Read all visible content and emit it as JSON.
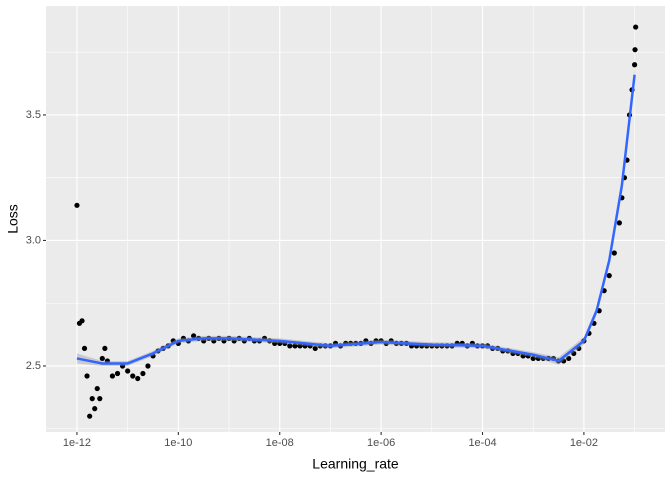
{
  "chart_data": {
    "type": "scatter",
    "x_label": "Learning_rate",
    "y_label": "Loss",
    "xlog": true,
    "grid": true,
    "color": "#000000",
    "xlim": [
      2.45e-13,
      0.398
    ],
    "ylim": [
      2.237,
      3.934
    ],
    "xticks": [
      {
        "value": 1e-12,
        "label": "1e-12"
      },
      {
        "value": 1e-10,
        "label": "1e-10"
      },
      {
        "value": 1e-08,
        "label": "1e-08"
      },
      {
        "value": 1e-06,
        "label": "1e-06"
      },
      {
        "value": 0.0001,
        "label": "1e-04"
      },
      {
        "value": 0.01,
        "label": "1e-02"
      }
    ],
    "yticks": [
      2.5,
      {
        "value": 3,
        "label": "3.0"
      },
      3.5
    ],
    "x": [
      1e-12,
      1.12e-12,
      1.26e-12,
      1.41e-12,
      1.58e-12,
      1.78e-12,
      2e-12,
      2.24e-12,
      2.51e-12,
      2.82e-12,
      3.16e-12,
      3.55e-12,
      3.98e-12,
      5.01e-12,
      6.31e-12,
      7.94e-12,
      1e-11,
      1.26e-11,
      1.58e-11,
      2e-11,
      2.51e-11,
      3.16e-11,
      3.98e-11,
      5.01e-11,
      6.31e-11,
      7.94e-11,
      1e-10,
      1.26e-10,
      1.58e-10,
      2e-10,
      2.51e-10,
      3.16e-10,
      3.98e-10,
      5.01e-10,
      6.31e-10,
      7.94e-10,
      1e-09,
      1.26e-09,
      1.58e-09,
      2e-09,
      2.51e-09,
      3.16e-09,
      3.98e-09,
      5.01e-09,
      6.31e-09,
      7.94e-09,
      1e-08,
      1.26e-08,
      1.58e-08,
      2e-08,
      2.51e-08,
      3.16e-08,
      3.98e-08,
      5.01e-08,
      6.31e-08,
      7.94e-08,
      1e-07,
      1.26e-07,
      1.58e-07,
      2e-07,
      2.51e-07,
      3.16e-07,
      3.98e-07,
      5.01e-07,
      6.31e-07,
      7.94e-07,
      1e-06,
      1.26e-06,
      1.58e-06,
      2e-06,
      2.51e-06,
      3.16e-06,
      3.98e-06,
      5.01e-06,
      6.31e-06,
      7.94e-06,
      1e-05,
      1.26e-05,
      1.58e-05,
      2e-05,
      2.51e-05,
      3.16e-05,
      3.98e-05,
      5.01e-05,
      6.31e-05,
      7.94e-05,
      0.0001,
      0.000126,
      0.000158,
      0.0002,
      0.000251,
      0.000316,
      0.000398,
      0.000501,
      0.000631,
      0.000794,
      0.001,
      0.00126,
      0.00158,
      0.002,
      0.00251,
      0.00316,
      0.00398,
      0.00501,
      0.00631,
      0.00794,
      0.01,
      0.0126,
      0.0158,
      0.02,
      0.0251,
      0.0316,
      0.0398,
      0.0501,
      0.0562,
      0.0631,
      0.0708,
      0.0794,
      0.0891,
      0.1,
      0.102,
      0.105
    ],
    "values": [
      3.14,
      2.67,
      2.68,
      2.57,
      2.46,
      2.3,
      2.37,
      2.33,
      2.41,
      2.37,
      2.53,
      2.57,
      2.52,
      2.46,
      2.47,
      2.5,
      2.48,
      2.46,
      2.45,
      2.47,
      2.5,
      2.54,
      2.56,
      2.57,
      2.58,
      2.6,
      2.59,
      2.61,
      2.6,
      2.62,
      2.61,
      2.6,
      2.61,
      2.6,
      2.61,
      2.6,
      2.61,
      2.6,
      2.61,
      2.6,
      2.61,
      2.6,
      2.6,
      2.61,
      2.6,
      2.59,
      2.59,
      2.59,
      2.58,
      2.58,
      2.58,
      2.58,
      2.58,
      2.57,
      2.58,
      2.58,
      2.58,
      2.59,
      2.58,
      2.59,
      2.59,
      2.59,
      2.59,
      2.6,
      2.59,
      2.6,
      2.6,
      2.59,
      2.6,
      2.59,
      2.59,
      2.59,
      2.58,
      2.58,
      2.58,
      2.58,
      2.58,
      2.58,
      2.58,
      2.58,
      2.58,
      2.59,
      2.59,
      2.58,
      2.59,
      2.58,
      2.58,
      2.58,
      2.57,
      2.57,
      2.56,
      2.56,
      2.55,
      2.55,
      2.54,
      2.54,
      2.53,
      2.53,
      2.53,
      2.53,
      2.53,
      2.52,
      2.52,
      2.53,
      2.55,
      2.57,
      2.6,
      2.63,
      2.67,
      2.72,
      2.8,
      2.86,
      2.95,
      3.07,
      3.17,
      3.25,
      3.32,
      3.5,
      3.6,
      3.7,
      3.76,
      3.85
    ],
    "smooth": {
      "color": "#3366FF",
      "band_color": "#999999",
      "x": [
        1e-12,
        3.16e-12,
        1e-11,
        3.16e-11,
        1e-10,
        3.16e-10,
        1e-09,
        1e-08,
        1e-07,
        1e-06,
        1e-05,
        0.0001,
        0.001,
        0.00316,
        0.01,
        0.0178,
        0.0316,
        0.0562,
        0.1
      ],
      "y": [
        2.53,
        2.51,
        2.51,
        2.55,
        2.6,
        2.61,
        2.61,
        2.6,
        2.58,
        2.595,
        2.585,
        2.58,
        2.545,
        2.52,
        2.6,
        2.72,
        2.92,
        3.22,
        3.66
      ],
      "ymin": [
        2.51,
        2.5,
        2.5,
        2.54,
        2.59,
        2.6,
        2.6,
        2.59,
        2.57,
        2.585,
        2.575,
        2.57,
        2.535,
        2.505,
        2.585,
        2.705,
        2.905,
        3.2,
        3.63
      ],
      "ymax": [
        2.55,
        2.52,
        2.52,
        2.56,
        2.61,
        2.62,
        2.62,
        2.61,
        2.59,
        2.605,
        2.595,
        2.59,
        2.555,
        2.535,
        2.615,
        2.735,
        2.935,
        3.24,
        3.69
      ]
    }
  }
}
